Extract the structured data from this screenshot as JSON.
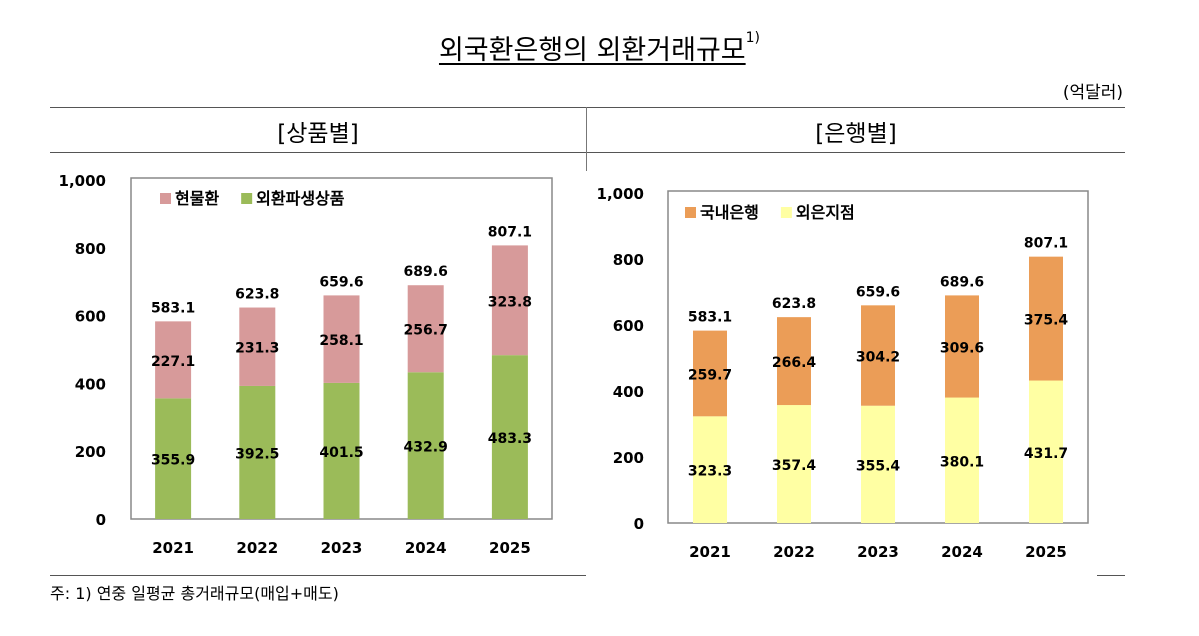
{
  "title": "외국환은행의 외환거래규모",
  "title_note": "1)",
  "unit": "(억달러)",
  "footnote": "주: 1) 연중 일평균 총거래규모(매입+매도)",
  "colors": {
    "spot": "#d79a9a",
    "deriv": "#9bbb59",
    "domestic": "#eb9d57",
    "foreign": "#ffffa3"
  },
  "chart_data": [
    {
      "type": "bar",
      "stacked": true,
      "title": "[상품별]",
      "categories": [
        "2021",
        "2022",
        "2023",
        "2024",
        "2025"
      ],
      "ylim": [
        0,
        1000
      ],
      "yticks": [
        "0",
        "200",
        "400",
        "600",
        "800",
        "1,000"
      ],
      "grid": false,
      "legend": "top-left",
      "series": [
        {
          "name": "외환파생상품",
          "values": [
            355.9,
            392.5,
            401.5,
            432.9,
            483.3
          ],
          "color": "#9bbb59"
        },
        {
          "name": "현물환",
          "values": [
            227.1,
            231.3,
            258.1,
            256.7,
            323.8
          ],
          "color": "#d79a9a"
        }
      ],
      "totals": [
        583.1,
        623.8,
        659.6,
        689.6,
        807.1
      ],
      "legend_order": [
        "현물환",
        "외환파생상품"
      ]
    },
    {
      "type": "bar",
      "stacked": true,
      "title": "[은행별]",
      "categories": [
        "2021",
        "2022",
        "2023",
        "2024",
        "2025"
      ],
      "ylim": [
        0,
        1000
      ],
      "yticks": [
        "0",
        "200",
        "400",
        "600",
        "800",
        "1,000"
      ],
      "grid": false,
      "legend": "top-left",
      "series": [
        {
          "name": "외은지점",
          "values": [
            323.3,
            357.4,
            355.4,
            380.1,
            431.7
          ],
          "color": "#ffffa3"
        },
        {
          "name": "국내은행",
          "values": [
            259.7,
            266.4,
            304.2,
            309.6,
            375.4
          ],
          "color": "#eb9d57"
        }
      ],
      "totals": [
        583.1,
        623.8,
        659.6,
        689.6,
        807.1
      ],
      "legend_order": [
        "국내은행",
        "외은지점"
      ]
    }
  ]
}
